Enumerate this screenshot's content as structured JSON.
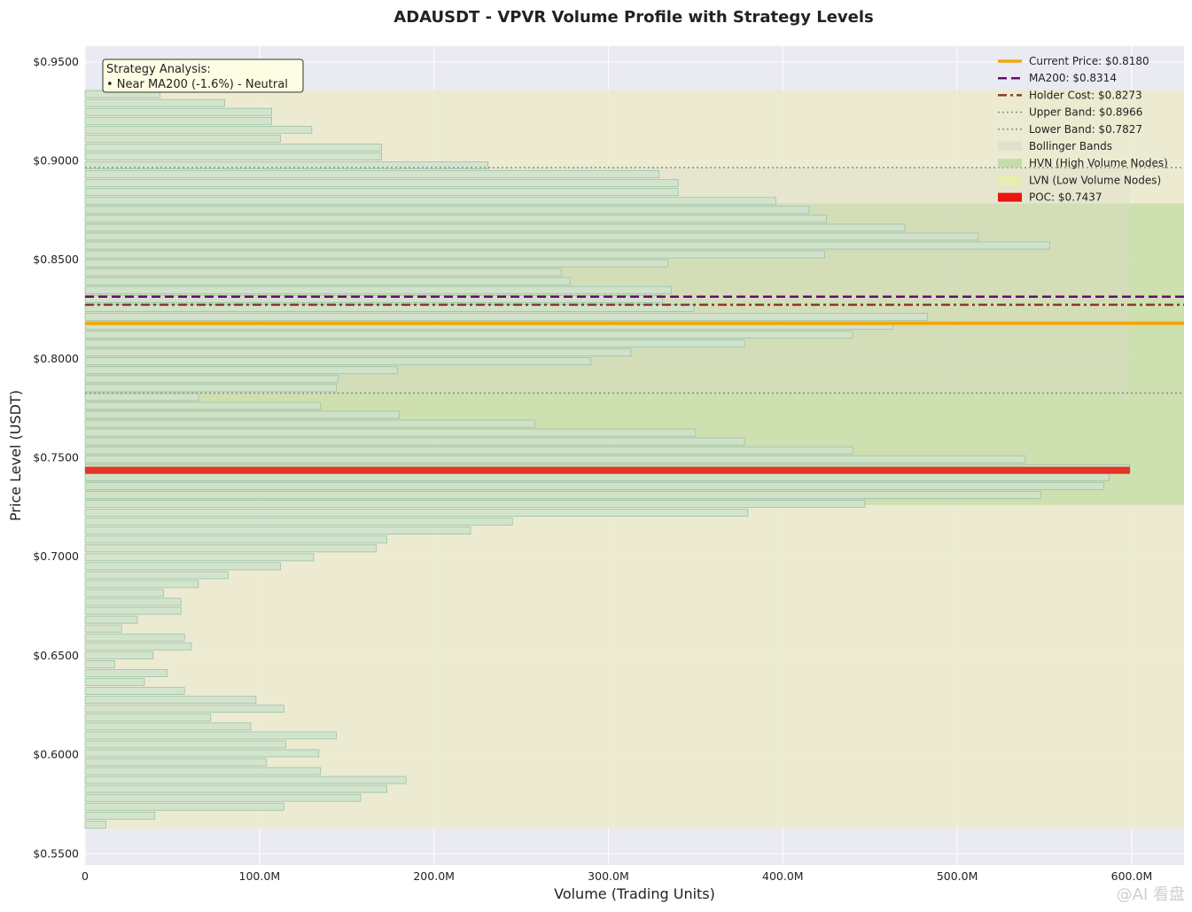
{
  "chart_data": {
    "type": "bar",
    "orientation": "horizontal",
    "title": "ADAUSDT - VPVR Volume Profile with Strategy Levels",
    "xlabel": "Volume (Trading Units)",
    "ylabel": "Price Level (USDT)",
    "xlim": [
      0,
      630
    ],
    "ylim": [
      0.5443,
      0.958
    ],
    "x_ticks": [
      0,
      100,
      200,
      300,
      400,
      500,
      600
    ],
    "x_tick_labels": [
      "0",
      "100.0M",
      "200.0M",
      "300.0M",
      "400.0M",
      "500.0M",
      "600.0M"
    ],
    "y_ticks": [
      0.55,
      0.6,
      0.65,
      0.7,
      0.75,
      0.8,
      0.85,
      0.9,
      0.95
    ],
    "y_tick_labels": [
      "$0.5500",
      "$0.6000",
      "$0.6500",
      "$0.7000",
      "$0.7500",
      "$0.8000",
      "$0.8500",
      "$0.9000",
      "$0.9500"
    ],
    "grid": true,
    "legend_position": "top-right",
    "bins": {
      "start_price": 0.5625,
      "bin_width": 0.0045,
      "volumes": [
        12,
        40,
        114,
        158,
        173,
        184,
        135,
        104,
        134,
        115,
        144,
        95,
        72,
        114,
        98,
        57,
        34,
        47,
        17,
        39,
        61,
        57,
        21,
        30,
        55,
        55,
        45,
        65,
        82,
        112,
        131,
        167,
        173,
        221,
        245,
        380,
        447,
        548,
        584,
        587,
        599,
        539,
        440,
        378,
        350,
        258,
        180,
        135,
        65,
        144,
        145,
        179,
        290,
        313,
        378,
        440,
        463,
        483,
        349,
        331,
        336,
        278,
        273,
        334,
        424,
        553,
        512,
        470,
        425,
        415,
        396,
        340,
        340,
        329,
        231,
        170,
        170,
        112,
        130,
        107,
        107,
        80,
        43
      ]
    },
    "hvn_range": [
      0.7262,
      0.8785
    ],
    "bollinger_range": [
      0.7827,
      0.8966
    ],
    "profile_range": [
      0.5625,
      0.936
    ],
    "poc": {
      "label": "POC: $0.7437",
      "price": 0.7437,
      "volume": 599,
      "color": "#e8170f"
    },
    "lines": [
      {
        "key": "current",
        "label": "Current Price: $0.8180",
        "price": 0.818,
        "color": "#f5a50b",
        "style": "solid"
      },
      {
        "key": "ma200",
        "label": "MA200: $0.8314",
        "price": 0.8314,
        "color": "#6a0a73",
        "style": "dashed"
      },
      {
        "key": "holder",
        "label": "Holder Cost: $0.8273",
        "price": 0.8273,
        "color": "#8b3a2a",
        "style": "dashdot"
      },
      {
        "key": "upper",
        "label": "Upper Band: $0.8966",
        "price": 0.8966,
        "color": "#8a8a8a",
        "style": "dotted"
      },
      {
        "key": "lower",
        "label": "Lower Band: $0.7827",
        "price": 0.7827,
        "color": "#8a8a8a",
        "style": "dotted"
      }
    ],
    "legend": [
      {
        "label": "Current Price: $0.8180",
        "kind": "line",
        "color": "#f5a50b",
        "style": "solid"
      },
      {
        "label": "MA200: $0.8314",
        "kind": "line",
        "color": "#6a0a73",
        "style": "dashed"
      },
      {
        "label": "Holder Cost: $0.8273",
        "kind": "line",
        "color": "#8b3a2a",
        "style": "dashdot"
      },
      {
        "label": "Upper Band: $0.8966",
        "kind": "line",
        "color": "#8a8a8a",
        "style": "dotted"
      },
      {
        "label": "Lower Band: $0.7827",
        "kind": "line",
        "color": "#8a8a8a",
        "style": "dotted"
      },
      {
        "label": "Bollinger Bands",
        "kind": "patch",
        "color": "#dedecb"
      },
      {
        "label": "HVN (High Volume Nodes)",
        "kind": "patch",
        "color": "#bdd9a6"
      },
      {
        "label": "LVN (Low Volume Nodes)",
        "kind": "patch",
        "color": "#e4f0a8"
      },
      {
        "label": "POC: $0.7437",
        "kind": "patch",
        "color": "#e8170f"
      }
    ],
    "annotation": {
      "title": "Strategy Analysis:",
      "text": "• Near MA200 (-1.6%) - Neutral"
    },
    "colors": {
      "axes_bg": "#eaeaf2",
      "lvn_fill": "#ecebcb",
      "hvn_fill": "#c9ddaa",
      "bollinger_fill": "#dedecb",
      "bar_fill": "#cfe3cc",
      "bar_edge": "#9cc1a8"
    }
  },
  "watermark": "@AI 看盘"
}
